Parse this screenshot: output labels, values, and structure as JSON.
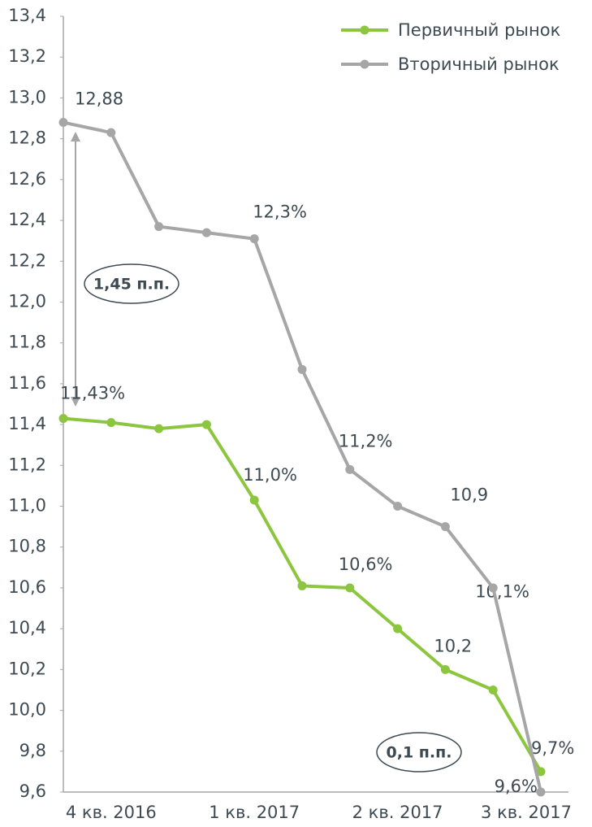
{
  "chart_data": {
    "type": "line",
    "categories": [
      null,
      "4 кв. 2016",
      null,
      null,
      "1 кв. 2017",
      null,
      null,
      "2 кв. 2017",
      null,
      null,
      "3 кв. 2017"
    ],
    "series": [
      {
        "name": "Первичный рынок",
        "color": "#8cc63f",
        "values": [
          11.43,
          11.41,
          11.38,
          11.4,
          11.03,
          10.61,
          10.6,
          10.4,
          10.2,
          10.1,
          9.7
        ],
        "value_labels": [
          "11,43%",
          null,
          null,
          null,
          "11,0%",
          null,
          "10,6%",
          null,
          "10,2",
          "10,1%",
          "9,7%"
        ]
      },
      {
        "name": "Вторичный рынок",
        "color": "#a6a6a6",
        "values": [
          12.88,
          12.83,
          12.37,
          12.34,
          12.31,
          11.67,
          11.18,
          11.0,
          10.9,
          10.6,
          9.6
        ],
        "value_labels": [
          "12,88",
          null,
          null,
          null,
          "12,3%",
          null,
          "11,2%",
          null,
          "10,9",
          null,
          "9,6%"
        ]
      }
    ],
    "ylim": [
      9.6,
      13.4
    ],
    "yticks": [
      {
        "value": 9.6,
        "label": "9,6"
      },
      {
        "value": 9.8,
        "label": "9,8"
      },
      {
        "value": 10.0,
        "label": "10,0"
      },
      {
        "value": 10.2,
        "label": "10,2"
      },
      {
        "value": 10.4,
        "label": "10,4"
      },
      {
        "value": 10.6,
        "label": "10,6"
      },
      {
        "value": 10.8,
        "label": "10,8"
      },
      {
        "value": 11.0,
        "label": "11,0"
      },
      {
        "value": 11.2,
        "label": "11,2"
      },
      {
        "value": 11.4,
        "label": "11,4"
      },
      {
        "value": 11.6,
        "label": "11,6"
      },
      {
        "value": 11.8,
        "label": "11,8"
      },
      {
        "value": 12.0,
        "label": "12,0"
      },
      {
        "value": 12.2,
        "label": "12,2"
      },
      {
        "value": 12.4,
        "label": "12,4"
      },
      {
        "value": 12.6,
        "label": "12,6"
      },
      {
        "value": 12.8,
        "label": "12,8"
      },
      {
        "value": 13.0,
        "label": "13,0"
      },
      {
        "value": 13.2,
        "label": "13,2"
      },
      {
        "value": 13.4,
        "label": "13,4"
      }
    ],
    "annotations": [
      "1,45 п.п.",
      "0,1 п.п."
    ],
    "legend": "top-right"
  }
}
